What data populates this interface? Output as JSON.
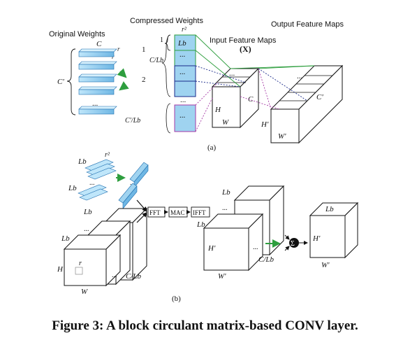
{
  "part_a": {
    "label": "(a)",
    "original_weights": "Original Weights",
    "compressed_weights": "Compressed Weights",
    "input_feature_maps": "Input Feature Maps",
    "input_x": "(X)",
    "output_feature_maps": "Output Feature Maps",
    "c": "C",
    "r": "r",
    "c_prime": "C'",
    "r2": "r²",
    "one": "1",
    "two": "2",
    "lb": "Lb",
    "c_over_lb": "C/Lb",
    "cprime_over_lb": "C'/Lb",
    "dots": "...",
    "h": "H",
    "w": "W",
    "h_prime": "H'",
    "w_prime": "W'"
  },
  "part_b": {
    "label": "(b)",
    "lb": "Lb",
    "r2": "r²",
    "fft": "FFT",
    "mac": "MAC",
    "ifft": "IFFT",
    "h": "H",
    "w": "W",
    "r": "r",
    "c_over_lb": "C/Lb",
    "h_prime": "H'",
    "w_prime": "W'",
    "sigma": "Σ",
    "dots": "..."
  },
  "caption": "Figure 3: A block circulant matrix-based CONV layer.",
  "colors": {
    "blue_fill": "#9fd3f0",
    "blue_stroke": "#1f6fb0",
    "green": "#2e9e3e",
    "purple": "#a63aa6",
    "navy": "#1a2a8a"
  }
}
